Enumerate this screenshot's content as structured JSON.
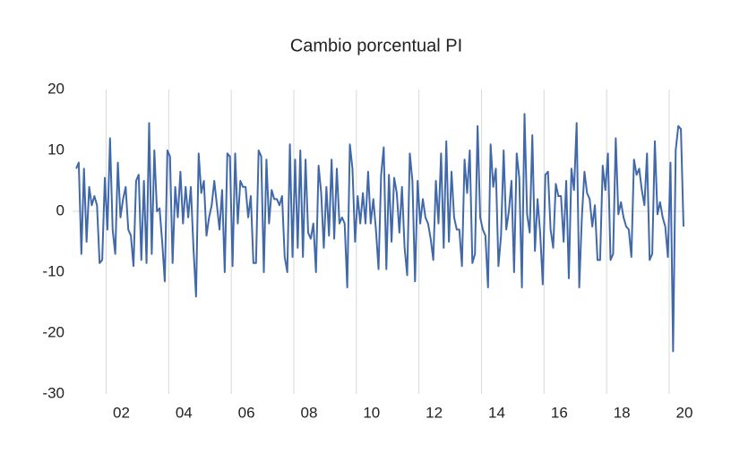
{
  "chart_data": {
    "type": "line",
    "title": "Cambio porcentual PI",
    "categories": [
      null,
      null,
      null,
      null,
      null,
      null,
      null,
      null,
      null,
      null,
      null,
      null,
      null,
      null,
      null,
      null,
      null,
      "02",
      null,
      null,
      null,
      null,
      null,
      null,
      null,
      null,
      null,
      null,
      null,
      null,
      null,
      null,
      null,
      null,
      null,
      null,
      null,
      null,
      null,
      null,
      null,
      "04",
      null,
      null,
      null,
      null,
      null,
      null,
      null,
      null,
      null,
      null,
      null,
      null,
      null,
      null,
      null,
      null,
      null,
      null,
      null,
      null,
      null,
      null,
      null,
      "06",
      null,
      null,
      null,
      null,
      null,
      null,
      null,
      null,
      null,
      null,
      null,
      null,
      null,
      null,
      null,
      null,
      null,
      null,
      null,
      null,
      null,
      null,
      null,
      "08",
      null,
      null,
      null,
      null,
      null,
      null,
      null,
      null,
      null,
      null,
      null,
      null,
      null,
      null,
      null,
      null,
      null,
      null,
      null,
      null,
      null,
      null,
      null,
      "10",
      null,
      null,
      null,
      null,
      null,
      null,
      null,
      null,
      null,
      null,
      null,
      null,
      null,
      null,
      null,
      null,
      null,
      null,
      null,
      null,
      null,
      null,
      null,
      "12",
      null,
      null,
      null,
      null,
      null,
      null,
      null,
      null,
      null,
      null,
      null,
      null,
      null,
      null,
      null,
      null,
      null,
      null,
      null,
      null,
      null,
      null,
      null,
      "14",
      null,
      null,
      null,
      null,
      null,
      null,
      null,
      null,
      null,
      null,
      null,
      null,
      null,
      null,
      null,
      null,
      null,
      null,
      null,
      null,
      null,
      null,
      null,
      "16",
      null,
      null,
      null,
      null,
      null,
      null,
      null,
      null,
      null,
      null,
      null,
      null,
      null,
      null,
      null,
      null,
      null,
      null,
      null,
      null,
      null,
      null,
      null,
      "18",
      null,
      null,
      null,
      null,
      null,
      null,
      null,
      null,
      null,
      null,
      null,
      null,
      null,
      null,
      null,
      null,
      null,
      null,
      null,
      null,
      null,
      null,
      null,
      "20"
    ],
    "series": [
      {
        "color": "#4169aa",
        "values": [
          7,
          8,
          -7,
          7,
          -5,
          4,
          1,
          2.5,
          1,
          -8.5,
          -8,
          5.5,
          -3,
          12,
          -3,
          -7,
          8,
          -1,
          2,
          4,
          -3,
          -4,
          -9,
          5,
          6,
          -8,
          5,
          -8.5,
          14.5,
          -7,
          10,
          0,
          0.5,
          -5,
          -11.5,
          10,
          9,
          -8.5,
          4,
          -1,
          6.5,
          -2,
          4,
          -1,
          4,
          -6,
          -14,
          9.5,
          3,
          5,
          -4,
          -1,
          1,
          5,
          1,
          -3,
          3.5,
          -10,
          9.5,
          9,
          -9,
          9.5,
          -2,
          5,
          4,
          4,
          -1,
          2.5,
          -8.5,
          -8.5,
          10,
          9,
          -10,
          8.5,
          -2,
          3.5,
          2,
          2,
          1,
          2.5,
          -7.5,
          -10,
          11,
          -7.5,
          8.5,
          -6,
          10,
          -7.5,
          8.5,
          -3.5,
          -4.5,
          -2,
          -10,
          7.5,
          3,
          -6,
          4,
          -4,
          8.5,
          -4.5,
          7,
          -2,
          -1,
          -2,
          -12.5,
          11,
          7,
          -5,
          2.5,
          -2,
          3,
          -2,
          6.5,
          -2,
          2,
          -3,
          -9.5,
          6,
          10.5,
          -9.5,
          6,
          -5,
          5.5,
          3,
          -3.5,
          4,
          -6,
          -10.5,
          9.5,
          5,
          -11.5,
          5,
          -2,
          2,
          -1,
          -2,
          -4.5,
          -8,
          5,
          -2,
          9.5,
          -6,
          11.5,
          -5,
          6.5,
          -1,
          -3,
          -3,
          -9,
          8.5,
          3,
          10,
          -8.5,
          -7,
          14,
          -1,
          -3,
          -4,
          -12.5,
          11,
          4,
          7,
          -9,
          -4,
          10,
          -3,
          0,
          5,
          -10,
          9.5,
          5.5,
          -12.5,
          16,
          -0.5,
          -3.5,
          12.5,
          -6.5,
          2,
          -3.5,
          -12,
          6,
          6.5,
          -3,
          -6,
          4.5,
          2.5,
          2.5,
          -5,
          5,
          -11,
          7,
          3.5,
          14.5,
          -12.5,
          -1,
          6.5,
          3,
          2,
          -2.5,
          1,
          -8,
          -8,
          7.5,
          3.5,
          9.5,
          -8,
          -7,
          12,
          -0.5,
          1.5,
          -1,
          -2.5,
          -3,
          -7.5,
          8.5,
          6,
          7,
          3.5,
          1,
          9.5,
          -8,
          -7,
          11.5,
          -0.5,
          1.5,
          -1,
          -2.5,
          -7.5,
          8,
          -23,
          10,
          14,
          13.5,
          -2.5
        ]
      }
    ],
    "ylim": [
      -30,
      20
    ],
    "yticks": [
      -30,
      -20,
      -10,
      0,
      10,
      20
    ],
    "grid": false
  }
}
